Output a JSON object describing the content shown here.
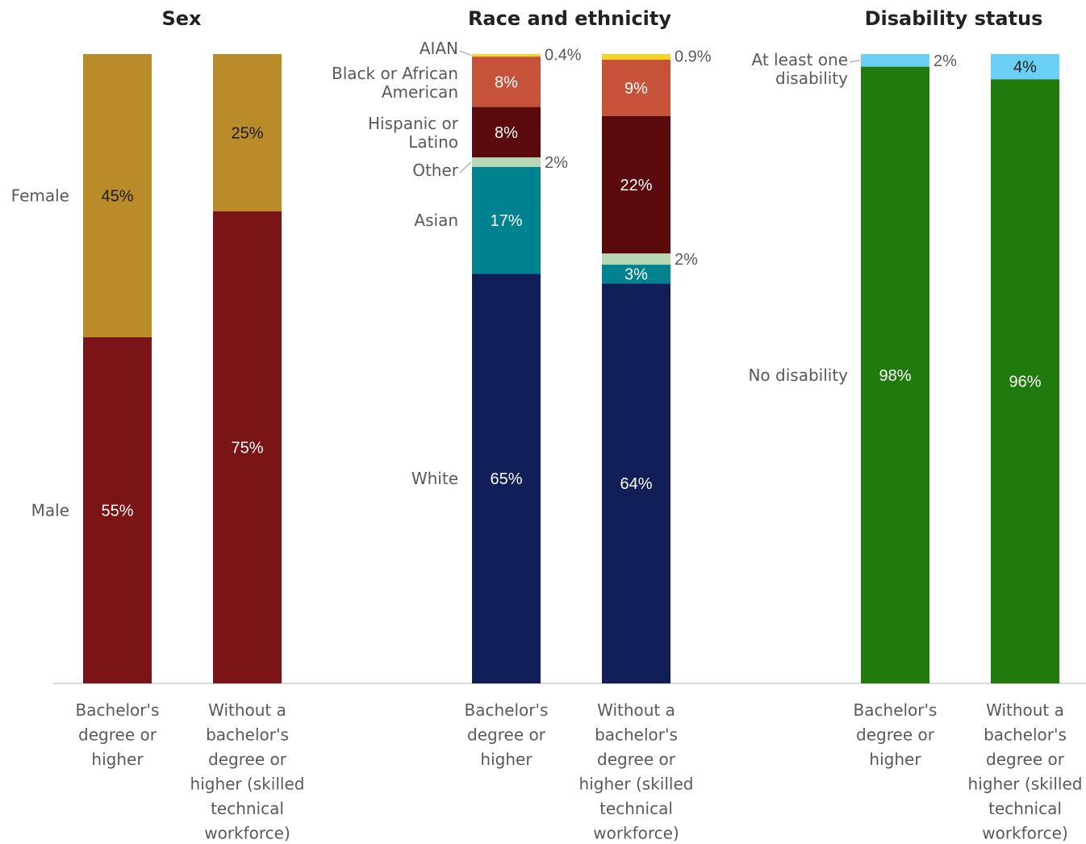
{
  "chart_data": [
    {
      "type": "bar",
      "stacked": true,
      "title": "Sex",
      "categories": [
        "Bachelor's degree or higher",
        "Without a bachelor's degree or higher (skilled technical workforce)"
      ],
      "series": [
        {
          "name": "Male",
          "values": [
            55,
            75
          ],
          "labels": [
            "55%",
            "75%"
          ],
          "color": "#7b1416",
          "text_color": "#ffffff"
        },
        {
          "name": "Female",
          "values": [
            45,
            25
          ],
          "labels": [
            "45%",
            "25%"
          ],
          "color": "#b98c29",
          "text_color": "#1a1a1a"
        }
      ]
    },
    {
      "type": "bar",
      "stacked": true,
      "title": "Race and ethnicity",
      "categories": [
        "Bachelor's degree or higher",
        "Without a bachelor's degree or higher (skilled technical workforce)"
      ],
      "series": [
        {
          "name": "White",
          "values": [
            65,
            64
          ],
          "labels": [
            "65%",
            "64%"
          ],
          "color": "#111e58",
          "text_color": "#ffffff"
        },
        {
          "name": "Asian",
          "values": [
            17,
            3
          ],
          "labels": [
            "17%",
            "3%"
          ],
          "color": "#008290",
          "text_color": "#ffffff"
        },
        {
          "name": "Other",
          "values": [
            1.5,
            1.8
          ],
          "labels": [
            "2%",
            "2%"
          ],
          "color": "#b6d7b4",
          "text_color": "#595959"
        },
        {
          "name": "Hispanic or Latino",
          "values": [
            8,
            22
          ],
          "labels": [
            "8%",
            "22%"
          ],
          "color": "#5a0a0d",
          "text_color": "#ffffff"
        },
        {
          "name": "Black or African American",
          "values": [
            8,
            9
          ],
          "labels": [
            "8%",
            "9%"
          ],
          "color": "#c6523a",
          "text_color": "#ffffff"
        },
        {
          "name": "AIAN",
          "values": [
            0.4,
            0.9
          ],
          "labels": [
            "0.4%",
            "0.9%"
          ],
          "color": "#f5d327",
          "text_color": "#595959"
        }
      ]
    },
    {
      "type": "bar",
      "stacked": true,
      "title": "Disability status",
      "categories": [
        "Bachelor's degree or higher",
        "Without a bachelor's degree or higher (skilled technical workforce)"
      ],
      "series": [
        {
          "name": "No disability",
          "values": [
            98,
            96
          ],
          "labels": [
            "98%",
            "96%"
          ],
          "color": "#217a0c",
          "text_color": "#ffffff"
        },
        {
          "name": "At least one disability",
          "values": [
            2,
            4
          ],
          "labels": [
            "2%",
            "4%"
          ],
          "color": "#6ccff6",
          "text_color": "#1a1a1a"
        }
      ]
    }
  ]
}
